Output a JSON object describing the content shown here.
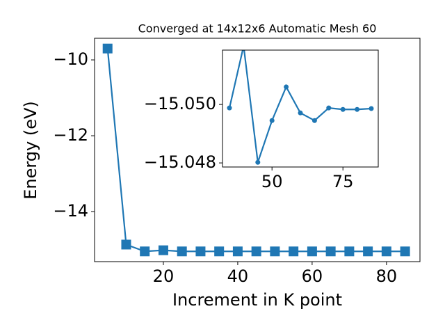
{
  "chart_data": [
    {
      "type": "line",
      "title": "Converged at 14x12x6 Automatic Mesh 60",
      "x_label": "Increment in K point",
      "y_label": "Energy (eV)",
      "x": [
        5,
        10,
        15,
        20,
        25,
        30,
        35,
        40,
        45,
        50,
        55,
        60,
        65,
        70,
        75,
        80,
        85
      ],
      "series": [
        {
          "color": "#1f77b4",
          "marker": "square",
          "values": [
            -9.7,
            -14.87,
            -15.05,
            -15.02,
            -15.05,
            -15.05,
            -15.05,
            -15.05,
            -15.05,
            -15.05,
            -15.05,
            -15.05,
            -15.05,
            -15.05,
            -15.05,
            -15.05,
            -15.05
          ]
        }
      ],
      "xlim": [
        1.5,
        89
      ],
      "ylim": [
        -15.32,
        -9.43
      ],
      "xticks": [
        20,
        40,
        60,
        80
      ],
      "yticks": [
        {
          "value": -10,
          "label": "−10"
        },
        {
          "value": -12,
          "label": "−12"
        },
        {
          "value": -14,
          "label": "−14"
        }
      ]
    },
    {
      "type": "line",
      "x": [
        35,
        40,
        45,
        50,
        55,
        60,
        65,
        70,
        75,
        80,
        85
      ],
      "series": [
        {
          "color": "#1f77b4",
          "marker": "circle",
          "values": [
            -15.04988,
            -15.052,
            -15.04802,
            -15.04945,
            -15.0506,
            -15.04971,
            -15.04945,
            -15.04988,
            -15.04983,
            -15.04983,
            -15.04986
          ]
        }
      ],
      "xlim": [
        32.55,
        87.45
      ],
      "ylim": [
        -15.04786,
        -15.05186
      ],
      "xticks": [
        50,
        75
      ],
      "yticks": [
        {
          "value": -15.05,
          "label": "−15.050"
        },
        {
          "value": -15.048,
          "label": "−15.048"
        }
      ]
    }
  ]
}
